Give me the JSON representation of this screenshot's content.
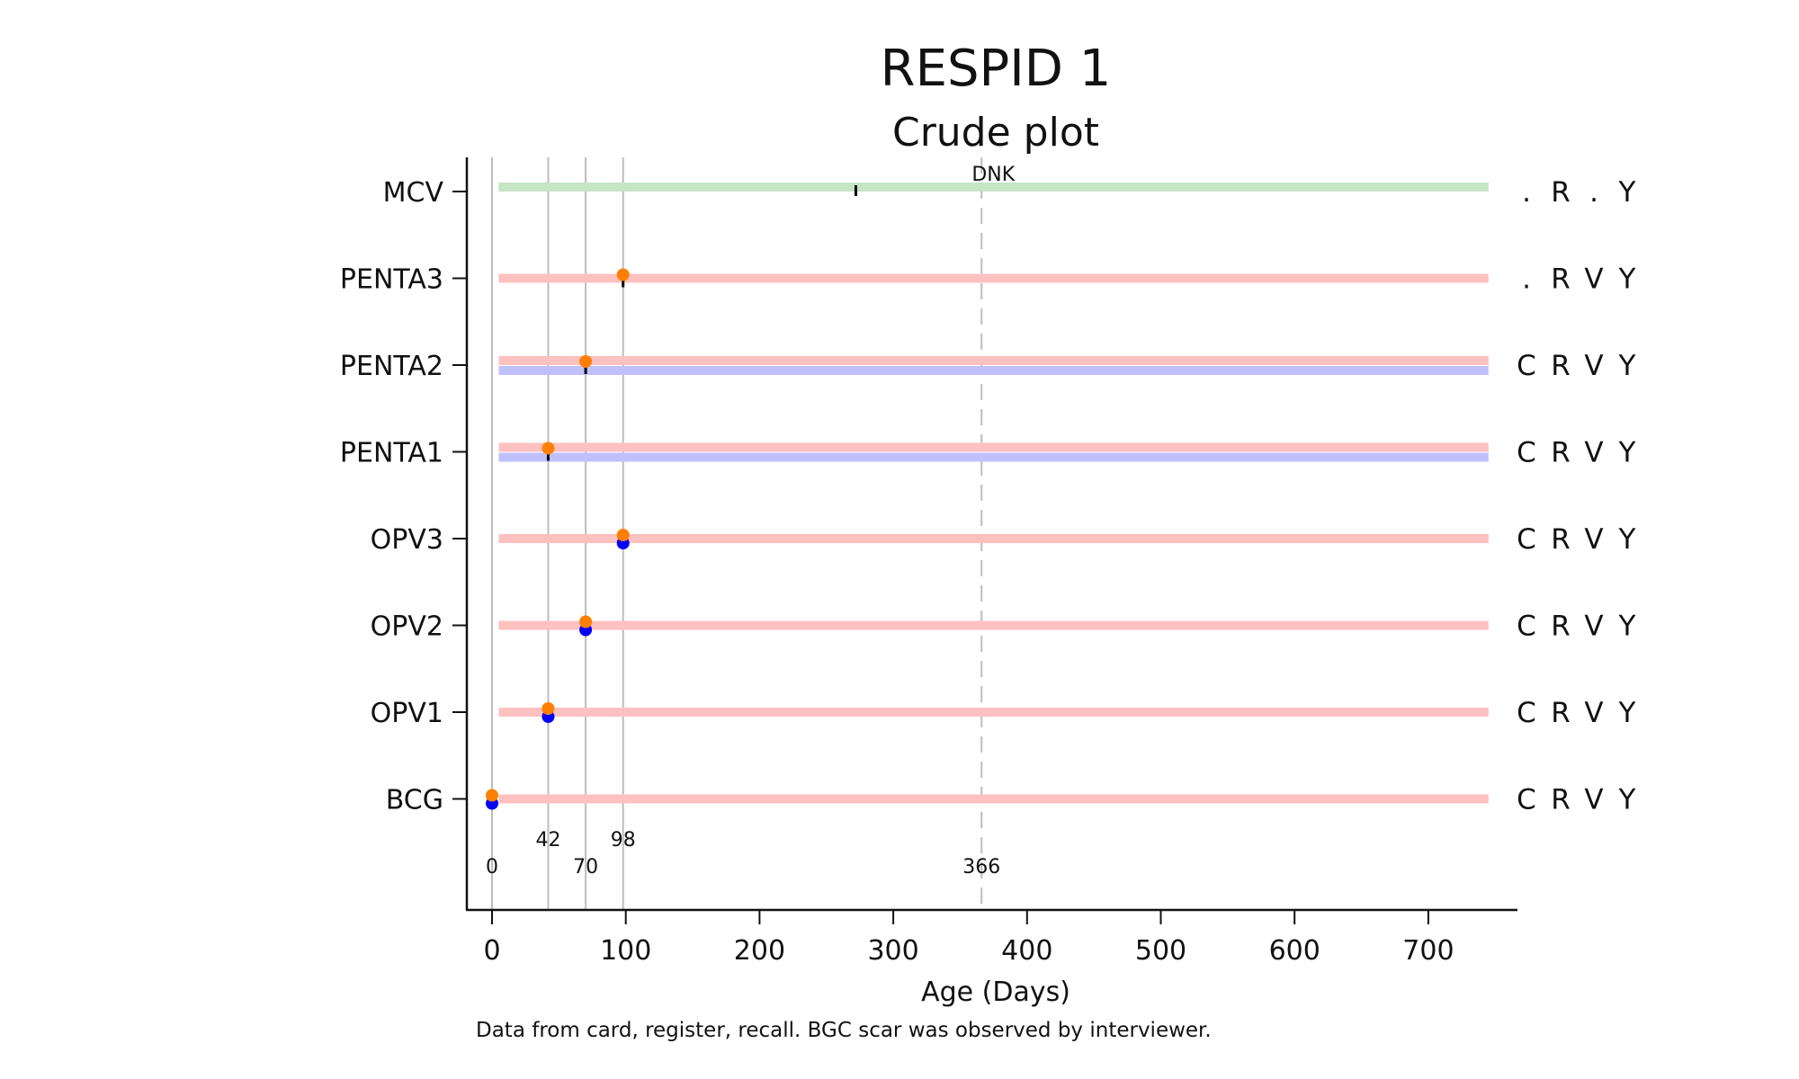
{
  "chart_data": {
    "type": "scatter",
    "title": "RESPID 1",
    "subtitle": "Crude plot",
    "xlabel": "Age (Days)",
    "xlim": [
      0,
      745
    ],
    "xticks": [
      0,
      100,
      200,
      300,
      400,
      500,
      600,
      700
    ],
    "reference_lines": [
      {
        "x": 0,
        "label": "0"
      },
      {
        "x": 42,
        "label": "42"
      },
      {
        "x": 70,
        "label": "70"
      },
      {
        "x": 98,
        "label": "98"
      },
      {
        "x": 366,
        "label": "366",
        "style": "dashed"
      }
    ],
    "vaccines": [
      {
        "name": "MCV",
        "bars": [
          "#c5e5c5"
        ],
        "card_date": null,
        "register_date": null,
        "black_tick": 272,
        "annotation": "DNK",
        "status": [
          ".",
          "R",
          ".",
          "Y"
        ]
      },
      {
        "name": "PENTA3",
        "bars": [
          "#ffc0c0"
        ],
        "card_date": null,
        "register_date": 98,
        "black_tick": 98,
        "status": [
          ".",
          "R",
          "V",
          "Y"
        ]
      },
      {
        "name": "PENTA2",
        "bars": [
          "#ffc0c0",
          "#c0c0ff"
        ],
        "card_date": null,
        "register_date": 70,
        "black_tick": 70,
        "status": [
          "C",
          "R",
          "V",
          "Y"
        ]
      },
      {
        "name": "PENTA1",
        "bars": [
          "#ffc0c0",
          "#c0c0ff"
        ],
        "card_date": null,
        "register_date": 42,
        "black_tick": 42,
        "status": [
          "C",
          "R",
          "V",
          "Y"
        ]
      },
      {
        "name": "OPV3",
        "bars": [
          "#ffc0c0"
        ],
        "card_date": 98,
        "register_date": 98,
        "black_tick": null,
        "status": [
          "C",
          "R",
          "V",
          "Y"
        ]
      },
      {
        "name": "OPV2",
        "bars": [
          "#ffc0c0"
        ],
        "card_date": 70,
        "register_date": 70,
        "black_tick": null,
        "status": [
          "C",
          "R",
          "V",
          "Y"
        ]
      },
      {
        "name": "OPV1",
        "bars": [
          "#ffc0c0"
        ],
        "card_date": 42,
        "register_date": 42,
        "black_tick": null,
        "status": [
          "C",
          "R",
          "V",
          "Y"
        ]
      },
      {
        "name": "BCG",
        "bars": [
          "#ffc0c0"
        ],
        "card_date": 0,
        "register_date": 0,
        "black_tick": null,
        "status": [
          "C",
          "R",
          "V",
          "Y"
        ]
      }
    ],
    "bar_range": [
      5,
      745
    ],
    "colors": {
      "card_dot": "#0000ff",
      "register_dot": "#ff8000",
      "tick": "#000000",
      "ref_line": "#bdbdbd",
      "dashed_line": "#bdbdbd"
    },
    "note": "Data from card, register, recall.  BGC scar was observed by interviewer."
  }
}
